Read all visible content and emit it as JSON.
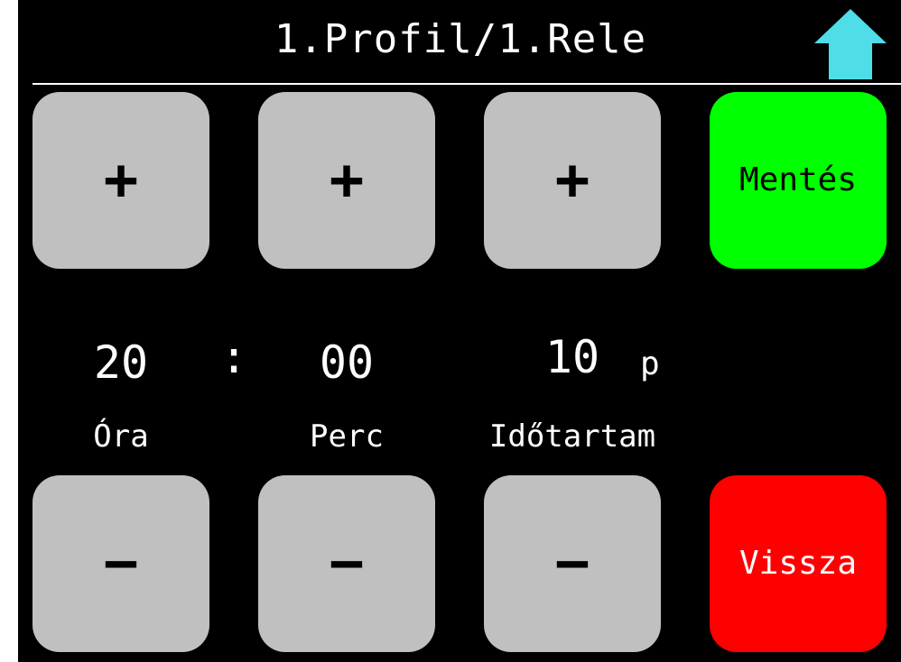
{
  "header": {
    "title": "1.Profil/1.Rele",
    "home_icon": "up-arrow-icon",
    "home_icon_color": "#4fdde8"
  },
  "controls": {
    "hour": {
      "increment_symbol": "+",
      "decrement_symbol": "−",
      "value": "20",
      "label": "Óra"
    },
    "separator": ":",
    "minute": {
      "increment_symbol": "+",
      "decrement_symbol": "−",
      "value": "00",
      "label": "Perc"
    },
    "duration": {
      "increment_symbol": "+",
      "decrement_symbol": "−",
      "value": "10",
      "unit": "p",
      "label": "Időtartam"
    }
  },
  "actions": {
    "save_label": "Mentés",
    "save_color": "#00ff00",
    "back_label": "Vissza",
    "back_color": "#ff0000"
  },
  "colors": {
    "background": "#000000",
    "button": "#c0c0c0",
    "text": "#ffffff"
  }
}
